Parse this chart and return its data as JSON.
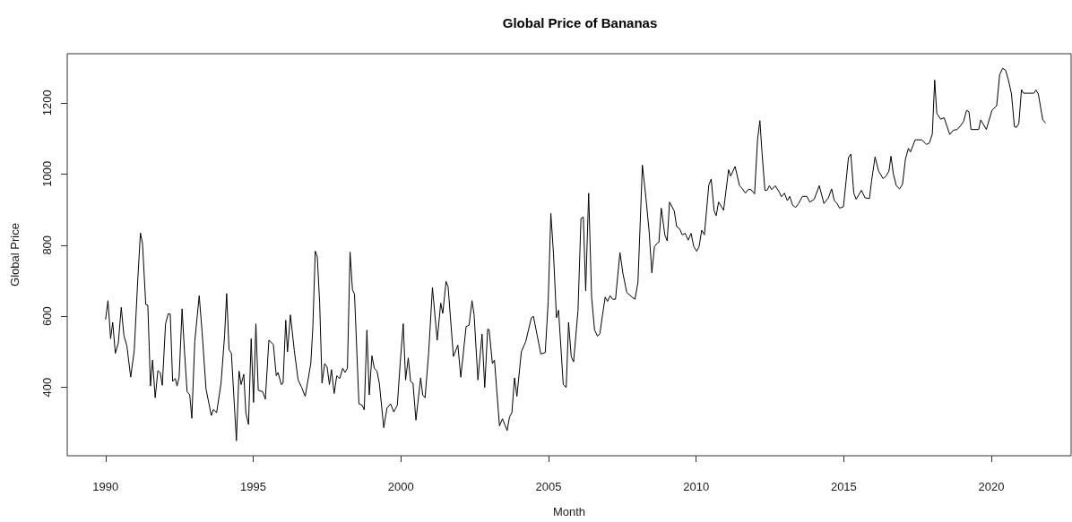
{
  "chart_data": {
    "type": "line",
    "title": "Global Price of Bananas",
    "xlabel": "Month",
    "ylabel": "Global Price",
    "x": [
      1990.0,
      1990.08,
      1990.17,
      1990.24,
      1990.33,
      1990.43,
      1990.53,
      1990.62,
      1990.72,
      1990.85,
      1990.97,
      1991.09,
      1991.18,
      1991.25,
      1991.36,
      1991.43,
      1991.52,
      1991.59,
      1991.68,
      1991.77,
      1991.85,
      1991.92,
      1992.03,
      1992.12,
      1992.19,
      1992.27,
      1992.36,
      1992.42,
      1992.49,
      1992.59,
      1992.67,
      1992.76,
      1992.85,
      1992.92,
      1993.02,
      1993.17,
      1993.27,
      1993.4,
      1993.58,
      1993.65,
      1993.76,
      1993.91,
      1994.03,
      1994.1,
      1994.18,
      1994.26,
      1994.43,
      1994.52,
      1994.59,
      1994.68,
      1994.75,
      1994.84,
      1994.93,
      1995.01,
      1995.09,
      1995.17,
      1995.32,
      1995.41,
      1995.53,
      1995.68,
      1995.78,
      1995.84,
      1995.95,
      1996.01,
      1996.1,
      1996.16,
      1996.26,
      1996.39,
      1996.52,
      1996.64,
      1996.76,
      1996.95,
      1997.02,
      1997.1,
      1997.17,
      1997.25,
      1997.33,
      1997.42,
      1997.5,
      1997.58,
      1997.65,
      1997.74,
      1997.83,
      1997.93,
      1998.03,
      1998.11,
      1998.19,
      1998.28,
      1998.36,
      1998.43,
      1998.58,
      1998.69,
      1998.76,
      1998.85,
      1998.93,
      1999.02,
      1999.1,
      1999.19,
      1999.27,
      1999.42,
      1999.53,
      1999.65,
      1999.76,
      1999.88,
      1999.98,
      2000.08,
      2000.16,
      2000.25,
      2000.33,
      2000.41,
      2000.51,
      2000.67,
      2000.74,
      2000.82,
      2000.94,
      2001.07,
      2001.23,
      2001.35,
      2001.42,
      2001.53,
      2001.6,
      2001.78,
      2001.93,
      2002.03,
      2002.21,
      2002.31,
      2002.41,
      2002.48,
      2002.61,
      2002.75,
      2002.84,
      2002.94,
      2002.99,
      2003.1,
      2003.17,
      2003.34,
      2003.44,
      2003.6,
      2003.68,
      2003.76,
      2003.85,
      2003.93,
      2004.08,
      2004.23,
      2004.42,
      2004.49,
      2004.74,
      2004.89,
      2004.99,
      2005.08,
      2005.17,
      2005.27,
      2005.34,
      2005.5,
      2005.6,
      2005.68,
      2005.77,
      2005.85,
      2006.0,
      2006.1,
      2006.18,
      2006.26,
      2006.36,
      2006.46,
      2006.56,
      2006.66,
      2006.74,
      2006.83,
      2006.92,
      2007.0,
      2007.09,
      2007.17,
      2007.27,
      2007.42,
      2007.52,
      2007.65,
      2007.83,
      2007.93,
      2008.03,
      2008.18,
      2008.3,
      2008.41,
      2008.5,
      2008.59,
      2008.69,
      2008.74,
      2008.82,
      2008.94,
      2009.02,
      2009.1,
      2009.26,
      2009.34,
      2009.44,
      2009.53,
      2009.63,
      2009.73,
      2009.83,
      2009.92,
      2010.02,
      2010.1,
      2010.19,
      2010.28,
      2010.43,
      2010.51,
      2010.61,
      2010.68,
      2010.76,
      2010.93,
      2011.1,
      2011.17,
      2011.32,
      2011.47,
      2011.57,
      2011.67,
      2011.77,
      2011.86,
      2011.98,
      2012.08,
      2012.16,
      2012.23,
      2012.33,
      2012.4,
      2012.48,
      2012.56,
      2012.68,
      2012.81,
      2012.89,
      2012.99,
      2013.09,
      2013.17,
      2013.27,
      2013.37,
      2013.47,
      2013.6,
      2013.75,
      2013.85,
      2014.0,
      2014.17,
      2014.33,
      2014.48,
      2014.59,
      2014.68,
      2014.76,
      2014.86,
      2014.99,
      2015.16,
      2015.24,
      2015.34,
      2015.42,
      2015.6,
      2015.72,
      2015.87,
      2015.94,
      2016.06,
      2016.18,
      2016.33,
      2016.43,
      2016.53,
      2016.6,
      2016.68,
      2016.78,
      2016.89,
      2016.99,
      2017.09,
      2017.19,
      2017.26,
      2017.42,
      2017.64,
      2017.8,
      2017.9,
      2018.0,
      2018.08,
      2018.15,
      2018.28,
      2018.4,
      2018.59,
      2018.71,
      2018.84,
      2018.96,
      2019.06,
      2019.16,
      2019.24,
      2019.31,
      2019.57,
      2019.64,
      2019.83,
      2020.02,
      2020.18,
      2020.28,
      2020.38,
      2020.48,
      2020.58,
      2020.68,
      2020.78,
      2020.85,
      2020.93,
      2021.02,
      2021.09,
      2021.44,
      2021.51,
      2021.59,
      2021.74,
      2021.83
    ],
    "series": [
      {
        "color": "#000000",
        "values": [
          592,
          644,
          537,
          583,
          496,
          525,
          625,
          546,
          517,
          429,
          504,
          704,
          834,
          804,
          633,
          631,
          404,
          477,
          371,
          447,
          442,
          406,
          579,
          607,
          606,
          417,
          425,
          404,
          429,
          621,
          504,
          388,
          379,
          313,
          529,
          658,
          554,
          396,
          321,
          338,
          329,
          412,
          546,
          664,
          506,
          496,
          250,
          446,
          408,
          437,
          329,
          296,
          537,
          358,
          579,
          392,
          388,
          367,
          533,
          521,
          433,
          442,
          408,
          412,
          589,
          500,
          604,
          504,
          421,
          400,
          375,
          467,
          571,
          783,
          767,
          637,
          412,
          467,
          458,
          408,
          450,
          383,
          433,
          425,
          454,
          442,
          454,
          781,
          675,
          662,
          354,
          350,
          337,
          561,
          379,
          489,
          454,
          446,
          412,
          287,
          342,
          354,
          331,
          350,
          471,
          579,
          421,
          483,
          417,
          412,
          308,
          427,
          379,
          371,
          496,
          681,
          533,
          637,
          608,
          698,
          683,
          487,
          519,
          429,
          571,
          575,
          644,
          604,
          421,
          550,
          400,
          564,
          562,
          467,
          477,
          292,
          312,
          279,
          317,
          329,
          427,
          375,
          500,
          529,
          596,
          600,
          494,
          498,
          642,
          889,
          775,
          596,
          617,
          408,
          400,
          583,
          487,
          472,
          617,
          875,
          879,
          671,
          946,
          654,
          562,
          544,
          551,
          604,
          654,
          642,
          658,
          648,
          648,
          779,
          721,
          667,
          654,
          648,
          696,
          1025,
          933,
          837,
          722,
          796,
          806,
          808,
          904,
          829,
          812,
          921,
          896,
          852,
          846,
          829,
          833,
          814,
          833,
          796,
          783,
          796,
          842,
          829,
          969,
          986,
          896,
          883,
          921,
          898,
          1012,
          994,
          1021,
          967,
          958,
          946,
          957,
          956,
          944,
          1096,
          1150,
          1062,
          954,
          954,
          967,
          956,
          967,
          950,
          936,
          946,
          925,
          937,
          912,
          906,
          917,
          937,
          937,
          921,
          929,
          967,
          917,
          933,
          958,
          925,
          919,
          904,
          908,
          1046,
          1056,
          946,
          929,
          954,
          933,
          931,
          979,
          1048,
          1008,
          987,
          994,
          1008,
          1050,
          1000,
          967,
          958,
          971,
          1042,
          1072,
          1062,
          1096,
          1096,
          1083,
          1087,
          1112,
          1264,
          1171,
          1154,
          1158,
          1111,
          1123,
          1125,
          1136,
          1148,
          1179,
          1175,
          1125,
          1125,
          1152,
          1125,
          1179,
          1192,
          1279,
          1297,
          1292,
          1263,
          1225,
          1133,
          1131,
          1142,
          1237,
          1227,
          1227,
          1236,
          1225,
          1152,
          1144
        ]
      }
    ],
    "xlim": [
      1988.7,
      2022.7
    ],
    "xticks": [
      1990,
      1995,
      2000,
      2005,
      2010,
      2015,
      2020
    ],
    "ylim": [
      208,
      1338
    ],
    "yticks": [
      400,
      600,
      800,
      1000,
      1200
    ]
  }
}
